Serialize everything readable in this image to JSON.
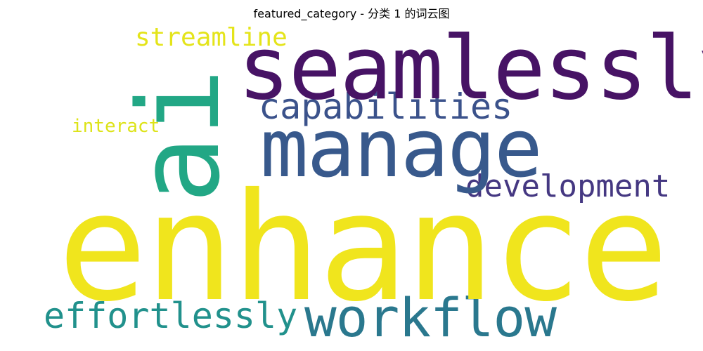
{
  "title": "featured_category - 分类 1 的词云图",
  "words": {
    "enhance": {
      "text": "enhance",
      "color": "#f0e51d"
    },
    "ai": {
      "text": "ai",
      "color": "#22a785"
    },
    "seamlessly": {
      "text": "seamlessly",
      "color": "#471365"
    },
    "manage": {
      "text": "manage",
      "color": "#38598c"
    },
    "capabilities": {
      "text": "capabilities",
      "color": "#3b528b"
    },
    "development": {
      "text": "development",
      "color": "#453882"
    },
    "workflow": {
      "text": "workflow",
      "color": "#2a788e"
    },
    "effortlessly": {
      "text": "effortlessly",
      "color": "#21918c"
    },
    "streamline": {
      "text": "streamline",
      "color": "#e4e41a"
    },
    "interact": {
      "text": "interact",
      "color": "#dde318"
    }
  }
}
